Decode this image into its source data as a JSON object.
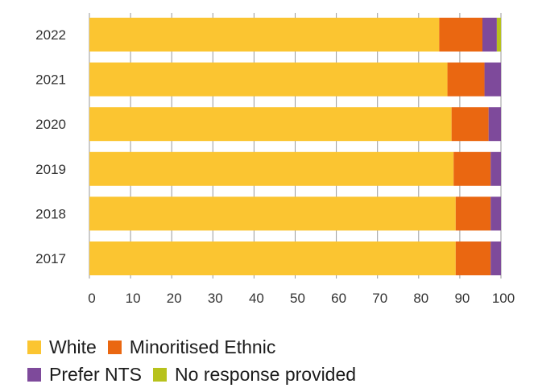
{
  "chart_data": {
    "type": "bar",
    "orientation": "horizontal",
    "stacked": true,
    "categories": [
      "2022",
      "2021",
      "2020",
      "2019",
      "2018",
      "2017"
    ],
    "series": [
      {
        "name": "White",
        "color": "#fbc531",
        "values": [
          85.0,
          87.0,
          88.0,
          88.5,
          89.0,
          89.0
        ]
      },
      {
        "name": "Minoritised Ethnic",
        "color": "#ea6711",
        "values": [
          10.5,
          9.0,
          9.0,
          9.0,
          8.5,
          8.5
        ]
      },
      {
        "name": "Prefer NTS",
        "color": "#7e4a9b",
        "values": [
          3.5,
          4.0,
          3.0,
          2.5,
          2.5,
          2.5
        ]
      },
      {
        "name": "No response provided",
        "color": "#b7c21c",
        "values": [
          1.0,
          0,
          0,
          0,
          0,
          0
        ]
      }
    ],
    "xlim": [
      0,
      100
    ],
    "x_ticks": [
      "0",
      "10",
      "20",
      "30",
      "40",
      "50",
      "60",
      "70",
      "80",
      "90",
      "100"
    ],
    "grid": true,
    "legend_position": "bottom-left",
    "title": "",
    "xlabel": "",
    "ylabel": ""
  }
}
